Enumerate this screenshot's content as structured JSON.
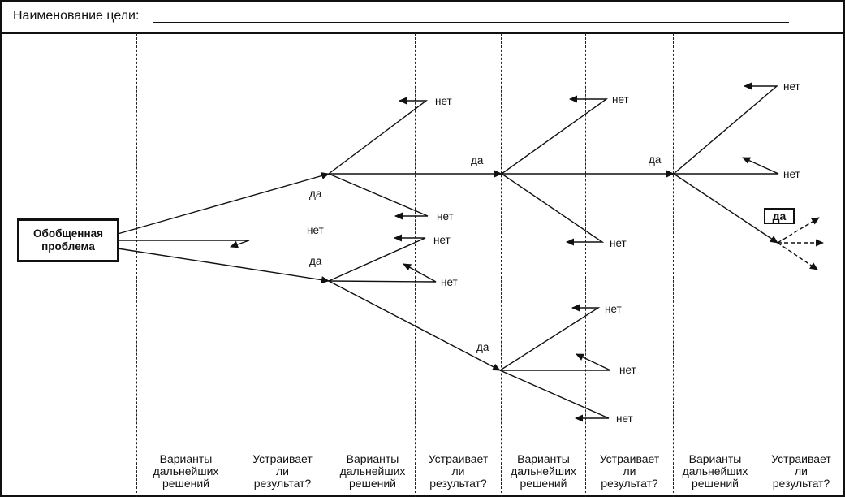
{
  "header": {
    "goal_label": "Наименование цели:"
  },
  "problem_box": {
    "label": "Обобщенная\nпроблема"
  },
  "columns": [
    {
      "label": "Варианты\nдальнейших\nрешений"
    },
    {
      "label": "Устраивает\nли\nрезультат?"
    },
    {
      "label": "Варианты\nдальнейших\nрешений"
    },
    {
      "label": "Устраивает\nли\nрезультат?"
    },
    {
      "label": "Варианты\nдальнейших\nрешений"
    },
    {
      "label": "Устраивает\nли\nрезультат?"
    },
    {
      "label": "Варианты\nдальнейших\nрешений"
    },
    {
      "label": "Устраивает\nли\nрезультат?"
    }
  ],
  "answers": {
    "yes": "да",
    "no": "нет"
  },
  "final_yes_box": {
    "label": "да"
  }
}
